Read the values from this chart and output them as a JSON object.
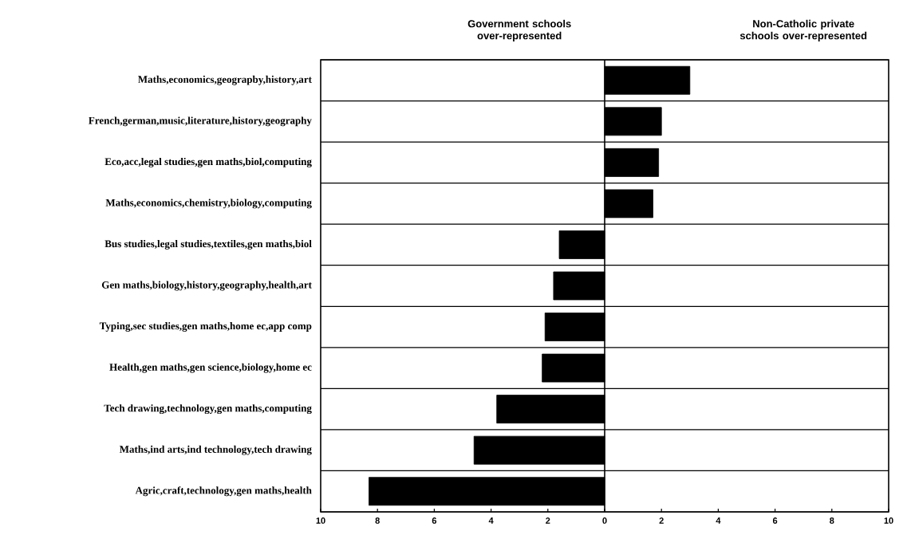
{
  "chart_data": {
    "type": "bar",
    "orientation": "horizontal",
    "annotations": [
      "Government schools over-represented",
      "Non-Catholic private schools over-represented"
    ],
    "categories": [
      "Maths,economics,geograpby,history,art",
      "French,german,music,literature,history,geography",
      "Eco,acc,legal studies,gen maths,biol,computing",
      "Maths,economics,chemistry,biology,computing",
      "Bus studies,legal studies,textiles,gen maths,biol",
      "Gen maths,biology,history,geography,health,art",
      "Typing,sec studies,gen maths,home ec,app comp",
      "Health,gen maths,gen science,biology,home ec",
      "Tech drawing,technology,gen maths,computing",
      "Maths,ind arts,ind technology,tech drawing",
      "Agric,craft,technology,gen maths,health"
    ],
    "values": [
      3.0,
      2.0,
      1.9,
      1.7,
      -1.6,
      -1.8,
      -2.1,
      -2.2,
      -3.8,
      -4.6,
      -8.3
    ],
    "color": "#000000",
    "xlim": [
      -10,
      10
    ],
    "xticks": [
      {
        "value": -10,
        "label": "10"
      },
      {
        "value": -8,
        "label": "8"
      },
      {
        "value": -6,
        "label": "6"
      },
      {
        "value": -4,
        "label": "4"
      },
      {
        "value": -2,
        "label": "2"
      },
      0,
      2,
      4,
      6,
      8,
      10
    ],
    "grid": "y"
  }
}
